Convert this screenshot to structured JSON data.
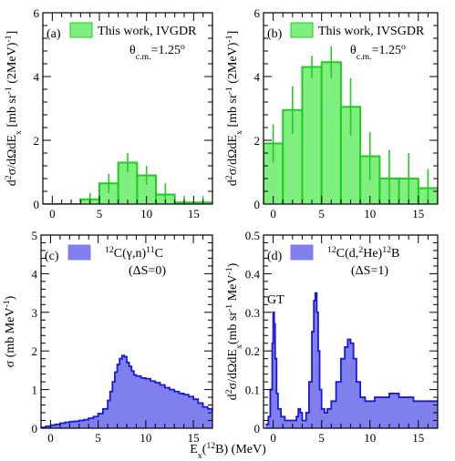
{
  "colors": {
    "ivgdr_fill": "#7ff07f",
    "ivgdr_line": "#22cc22",
    "blue_fill": "#7f7fee",
    "blue_line": "#1a1ad6",
    "frame": "#000000"
  },
  "xlabel": "E_x(12B) (MeV)",
  "chart_data": [
    {
      "id": "a",
      "type": "bar",
      "panel_tag": "(a)",
      "legend": "This work, IVGDR",
      "annotation": "θc.m.=1.25o",
      "ylabel": "d2σ/dΩdEx [mb sr-1 (2MeV)-1]",
      "xlim": [
        -1,
        17
      ],
      "ylim": [
        0,
        6
      ],
      "xticks": [
        0,
        5,
        10,
        15
      ],
      "yticks": [
        0,
        2,
        4,
        6
      ],
      "bin_edges": [
        -1,
        1,
        3,
        5,
        7,
        9,
        11,
        13,
        15,
        17
      ],
      "values": [
        0,
        0,
        0.15,
        0.65,
        1.3,
        0.9,
        0.3,
        0.05,
        0.05
      ],
      "errors": [
        0,
        0,
        0.2,
        0.3,
        0.3,
        0.3,
        0.35,
        0.2,
        0.2
      ]
    },
    {
      "id": "b",
      "type": "bar",
      "panel_tag": "(b)",
      "legend": "This work, IVSGDR",
      "annotation": "θc.m.=1.25o",
      "ylabel": "d2σ/dΩdEx [mb sr-1 (2MeV)-1]",
      "xlim": [
        -1,
        17
      ],
      "ylim": [
        0,
        6
      ],
      "xticks": [
        0,
        5,
        10,
        15
      ],
      "yticks": [
        0,
        2,
        4,
        6
      ],
      "bin_edges": [
        -1,
        1,
        3,
        5,
        7,
        9,
        11,
        13,
        15,
        17
      ],
      "values": [
        1.9,
        2.95,
        4.3,
        4.45,
        3.05,
        1.5,
        0.8,
        0.8,
        0.5
      ],
      "errors": [
        0.6,
        0.75,
        0.35,
        0.5,
        0.9,
        0.75,
        0.9,
        0.8,
        0.6
      ]
    },
    {
      "id": "c",
      "type": "area",
      "panel_tag": "(c)",
      "legend": "12C(γ,n)11C",
      "legend_sub": "(ΔS=0)",
      "ylabel": "σ (mb MeV-1)",
      "xlim": [
        -1,
        17
      ],
      "ylim": [
        0,
        5
      ],
      "xticks": [
        0,
        5,
        10,
        15
      ],
      "yticks": [
        0,
        1,
        2,
        3,
        4,
        5
      ],
      "x": [
        -1,
        -0.5,
        0,
        0.5,
        1,
        1.5,
        2,
        2.5,
        3,
        3.5,
        4,
        4.5,
        5,
        5.5,
        6,
        6.25,
        6.5,
        6.75,
        7,
        7.25,
        7.5,
        7.75,
        8,
        8.25,
        8.5,
        8.75,
        9,
        9.5,
        10,
        10.5,
        11,
        11.5,
        12,
        12.5,
        13,
        13.5,
        14,
        14.5,
        15,
        15.5,
        16,
        16.5,
        17
      ],
      "y": [
        0.02,
        0.05,
        0.08,
        0.1,
        0.13,
        0.15,
        0.17,
        0.18,
        0.2,
        0.22,
        0.26,
        0.3,
        0.38,
        0.5,
        0.72,
        0.95,
        1.2,
        1.45,
        1.65,
        1.8,
        1.88,
        1.85,
        1.7,
        1.6,
        1.48,
        1.38,
        1.35,
        1.3,
        1.28,
        1.22,
        1.18,
        1.12,
        1.05,
        1.0,
        0.95,
        0.9,
        0.87,
        0.82,
        0.75,
        0.65,
        0.55,
        0.5,
        0.45
      ]
    },
    {
      "id": "d",
      "type": "area",
      "panel_tag": "(d)",
      "legend": "12C(d,2He)12B",
      "legend_sub": "(ΔS=1)",
      "annotation": "GT",
      "ylabel": "d2σ/dΩdEx (mb sr-1 MeV-1)",
      "xlim": [
        -1,
        17
      ],
      "ylim": [
        0,
        0.5
      ],
      "xticks": [
        0,
        5,
        10,
        15
      ],
      "yticks": [
        0,
        0.1,
        0.2,
        0.3,
        0.4,
        0.5
      ],
      "x": [
        -0.8,
        -0.5,
        -0.3,
        -0.1,
        0,
        0.1,
        0.2,
        0.35,
        0.5,
        0.8,
        1.2,
        1.6,
        2.0,
        2.4,
        2.6,
        2.8,
        3.0,
        3.2,
        3.4,
        3.7,
        4.0,
        4.2,
        4.35,
        4.5,
        4.65,
        4.8,
        5.0,
        5.3,
        5.6,
        6.0,
        6.5,
        7.0,
        7.4,
        7.7,
        8.0,
        8.3,
        8.6,
        9.0,
        9.5,
        10.0,
        10.5,
        11.0,
        11.5,
        12.0,
        12.5,
        13.0,
        13.5,
        14.0,
        14.5,
        15.0,
        15.5,
        16.0,
        16.5,
        17.0
      ],
      "y": [
        0.01,
        0.03,
        0.1,
        0.22,
        0.3,
        0.27,
        0.18,
        0.09,
        0.05,
        0.03,
        0.02,
        0.02,
        0.02,
        0.03,
        0.05,
        0.04,
        0.02,
        0.02,
        0.04,
        0.12,
        0.25,
        0.33,
        0.35,
        0.3,
        0.2,
        0.1,
        0.05,
        0.04,
        0.05,
        0.07,
        0.12,
        0.18,
        0.21,
        0.23,
        0.22,
        0.18,
        0.12,
        0.08,
        0.07,
        0.07,
        0.08,
        0.08,
        0.08,
        0.09,
        0.09,
        0.08,
        0.08,
        0.08,
        0.07,
        0.07,
        0.07,
        0.07,
        0.07,
        0.07
      ]
    }
  ]
}
